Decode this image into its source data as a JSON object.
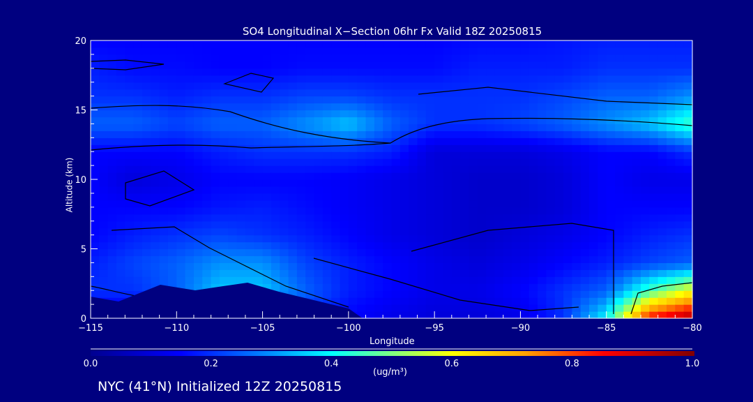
{
  "chart_data": {
    "type": "heatmap",
    "title": "SO4 Longitudinal X−Section 06hr  Fx Valid 18Z 20250815",
    "xlabel": "Longitude",
    "ylabel": "Altitude (km)",
    "xlim": [
      -115,
      -80
    ],
    "ylim": [
      0,
      20
    ],
    "xticks": [
      "−115",
      "−110",
      "−105",
      "−100",
      "−95",
      "−90",
      "−85",
      "−80"
    ],
    "yticks": [
      "0",
      "5",
      "10",
      "15",
      "20"
    ],
    "x": [
      -115,
      -112.5,
      -110,
      -107.5,
      -105,
      -102.5,
      -100,
      -97.5,
      -95,
      -92.5,
      -90,
      -87.5,
      -85,
      -82.5,
      -80
    ],
    "y": [
      0,
      2,
      4,
      6,
      8,
      10,
      12,
      14,
      16,
      18,
      20
    ],
    "values": [
      [
        0.1,
        0.1,
        0.1,
        0.15,
        0.2,
        0.2,
        0.15,
        0.12,
        0.1,
        0.1,
        0.12,
        0.2,
        0.4,
        0.85,
        0.95
      ],
      [
        0.2,
        0.2,
        0.25,
        0.35,
        0.35,
        0.25,
        0.18,
        0.15,
        0.12,
        0.12,
        0.15,
        0.2,
        0.25,
        0.45,
        0.6
      ],
      [
        0.18,
        0.22,
        0.25,
        0.3,
        0.3,
        0.22,
        0.18,
        0.15,
        0.12,
        0.1,
        0.12,
        0.15,
        0.18,
        0.22,
        0.25
      ],
      [
        0.15,
        0.18,
        0.2,
        0.22,
        0.2,
        0.18,
        0.15,
        0.12,
        0.1,
        0.08,
        0.1,
        0.12,
        0.15,
        0.18,
        0.2
      ],
      [
        0.15,
        0.15,
        0.15,
        0.17,
        0.18,
        0.16,
        0.14,
        0.12,
        0.1,
        0.08,
        0.08,
        0.1,
        0.15,
        0.15,
        0.15
      ],
      [
        0.15,
        0.1,
        0.12,
        0.15,
        0.15,
        0.15,
        0.14,
        0.12,
        0.1,
        0.08,
        0.08,
        0.1,
        0.15,
        0.12,
        0.12
      ],
      [
        0.15,
        0.15,
        0.15,
        0.18,
        0.2,
        0.2,
        0.2,
        0.18,
        0.1,
        0.1,
        0.1,
        0.12,
        0.15,
        0.15,
        0.2
      ],
      [
        0.25,
        0.25,
        0.22,
        0.25,
        0.25,
        0.3,
        0.35,
        0.25,
        0.2,
        0.2,
        0.22,
        0.25,
        0.3,
        0.35,
        0.45
      ],
      [
        0.2,
        0.2,
        0.18,
        0.2,
        0.2,
        0.22,
        0.22,
        0.2,
        0.2,
        0.2,
        0.2,
        0.22,
        0.25,
        0.25,
        0.3
      ],
      [
        0.18,
        0.16,
        0.16,
        0.15,
        0.15,
        0.16,
        0.16,
        0.16,
        0.16,
        0.18,
        0.18,
        0.18,
        0.2,
        0.2,
        0.2
      ],
      [
        0.15,
        0.15,
        0.15,
        0.15,
        0.15,
        0.15,
        0.15,
        0.15,
        0.15,
        0.16,
        0.16,
        0.17,
        0.18,
        0.18,
        0.18
      ]
    ],
    "colorbar": {
      "range": [
        0,
        1
      ],
      "ticks": [
        "0.0",
        "0.2",
        "0.4",
        "0.6",
        "0.8",
        "1.0"
      ],
      "units": "(ug/m³)"
    }
  },
  "footer": "NYC (41°N) Initialized 12Z 20250815"
}
